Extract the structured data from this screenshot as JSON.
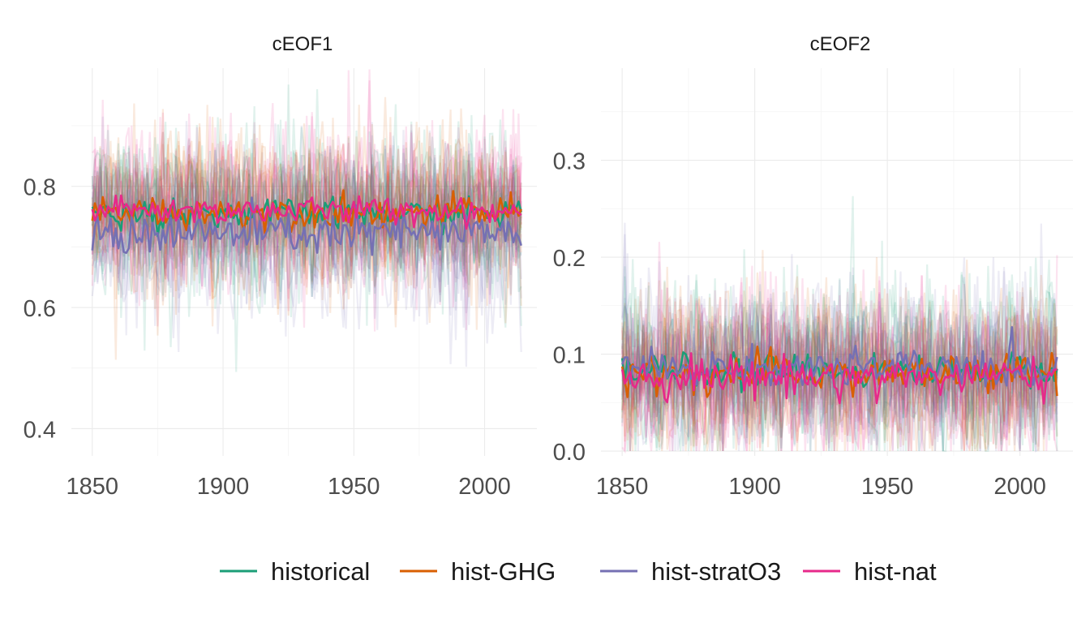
{
  "colors": {
    "historical": "#1b9e77",
    "hist-GHG": "#d95f02",
    "hist-stratO3": "#7570b3",
    "hist-nat": "#e7298a",
    "grid": "#ebebeb",
    "text": "#4d4d4d"
  },
  "legend": {
    "items": [
      "historical",
      "hist-GHG",
      "hist-stratO3",
      "hist-nat"
    ],
    "position": "bottom"
  },
  "chart_data": [
    {
      "type": "line",
      "title": "cEOF1",
      "xlabel": "",
      "ylabel": "",
      "xlim": [
        1842,
        2020
      ],
      "ylim": [
        0.355,
        0.995
      ],
      "x_ticks": [
        1850,
        1900,
        1950,
        2000
      ],
      "y_ticks": [
        0.4,
        0.6,
        0.8
      ],
      "y_tick_labels": [
        "0.4",
        "0.6",
        "0.8"
      ],
      "grid": true,
      "x_start": 1850,
      "x_end": 2014,
      "series": [
        {
          "name": "historical",
          "mean": 0.755,
          "noise": 0.012
        },
        {
          "name": "hist-GHG",
          "mean": 0.758,
          "noise": 0.013
        },
        {
          "name": "hist-stratO3",
          "mean": 0.722,
          "noise": 0.018
        },
        {
          "name": "hist-nat",
          "mean": 0.76,
          "noise": 0.011
        }
      ],
      "ensemble": {
        "members_per_series": 8,
        "spread": 0.065,
        "opacity": 0.13
      }
    },
    {
      "type": "line",
      "title": "cEOF2",
      "xlabel": "",
      "ylabel": "",
      "xlim": [
        1842,
        2020
      ],
      "ylim": [
        -0.005,
        0.395
      ],
      "x_ticks": [
        1850,
        1900,
        1950,
        2000
      ],
      "y_ticks": [
        0.0,
        0.1,
        0.2,
        0.3
      ],
      "y_tick_labels": [
        "0.0",
        "0.1",
        "0.2",
        "0.3"
      ],
      "grid": true,
      "x_start": 1850,
      "x_end": 2014,
      "series": [
        {
          "name": "historical",
          "mean": 0.083,
          "noise": 0.008
        },
        {
          "name": "hist-GHG",
          "mean": 0.08,
          "noise": 0.01
        },
        {
          "name": "hist-stratO3",
          "mean": 0.085,
          "noise": 0.01
        },
        {
          "name": "hist-nat",
          "mean": 0.077,
          "noise": 0.01
        }
      ],
      "ensemble": {
        "members_per_series": 8,
        "spread": 0.042,
        "opacity": 0.13
      }
    }
  ]
}
